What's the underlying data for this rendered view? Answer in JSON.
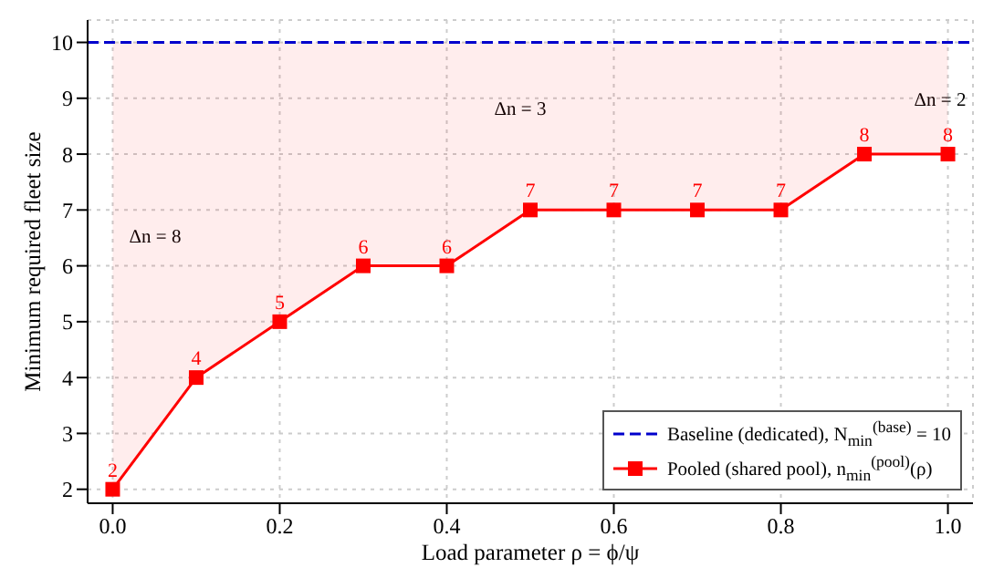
{
  "chart_data": {
    "type": "line",
    "xlabel": "Load parameter ρ = ϕ/ψ",
    "ylabel": "Minimum required fleet size",
    "x": [
      0,
      0.1,
      0.2,
      0.3,
      0.4,
      0.5,
      0.6,
      0.7,
      0.8,
      0.9,
      1.0
    ],
    "series": [
      {
        "name": "Baseline (dedicated), N$_{min}$$^{(base)}$ = 10",
        "color": "#0000cc",
        "line_style": "dashed",
        "marker": "none",
        "x": [
          -0.03,
          1.03
        ],
        "values": [
          10,
          10
        ]
      },
      {
        "name": "Pooled (shared pool), n$_{min}$$^{(pool)}$(ρ)",
        "color": "#ff0000",
        "line_style": "solid",
        "marker": "square",
        "data_labels": true,
        "values": [
          2,
          4,
          5,
          6,
          6,
          7,
          7,
          7,
          7,
          8,
          8
        ],
        "lower": [
          2,
          4,
          5,
          6,
          6,
          7,
          7,
          7,
          7,
          8,
          8
        ],
        "upper": [
          10,
          10,
          10,
          10,
          10,
          10,
          10,
          10,
          10,
          10,
          10
        ]
      }
    ],
    "annotations": [
      "Δn = 8",
      "Δn = 3",
      "Δn = 2"
    ],
    "xlim": [
      -0.03,
      1.03
    ],
    "xticks": [
      {
        "value": 0,
        "label": "0.0"
      },
      0.2,
      0.4,
      0.6,
      0.8,
      {
        "value": 1,
        "label": "1.0"
      }
    ],
    "ylim": [
      1.75,
      10.4
    ],
    "yticks": [
      2,
      3,
      4,
      5,
      6,
      7,
      8,
      9,
      10
    ],
    "grid": true,
    "legend": "bottom right"
  }
}
